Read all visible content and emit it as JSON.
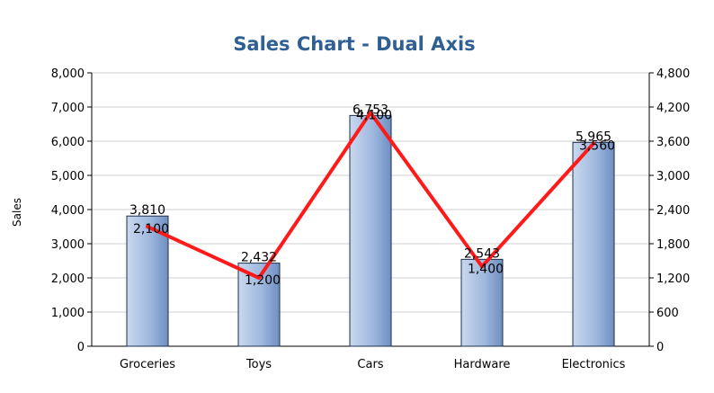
{
  "chart_data": {
    "type": "bar",
    "title": "Sales Chart - Dual Axis",
    "xlabel": "",
    "ylabel": "Sales",
    "categories": [
      "Groceries",
      "Toys",
      "Cars",
      "Hardware",
      "Electronics"
    ],
    "series": [
      {
        "name": "",
        "kind": "bar",
        "axis": "left",
        "values": [
          3810,
          2432,
          6753,
          2543,
          5965
        ],
        "labels": [
          "3,810",
          "2,432",
          "6,753",
          "2,543",
          "5,965"
        ],
        "color": "#9fb8de"
      },
      {
        "name": "",
        "kind": "line",
        "axis": "right",
        "values": [
          2100,
          1200,
          4100,
          1400,
          3560
        ],
        "labels": [
          "2,100",
          "1,200",
          "4,100",
          "1,400",
          "3,560"
        ],
        "color": "#ff1a1a"
      }
    ],
    "ylim": [
      0,
      8000
    ],
    "y_ticks": [
      "0",
      "1,000",
      "2,000",
      "3,000",
      "4,000",
      "5,000",
      "6,000",
      "7,000",
      "8,000"
    ],
    "y2lim": [
      0,
      4800
    ],
    "y2_ticks": [
      "0",
      "600",
      "1,200",
      "1,800",
      "2,400",
      "3,000",
      "3,600",
      "4,200",
      "4,800"
    ],
    "grid": true,
    "legend": "none"
  }
}
